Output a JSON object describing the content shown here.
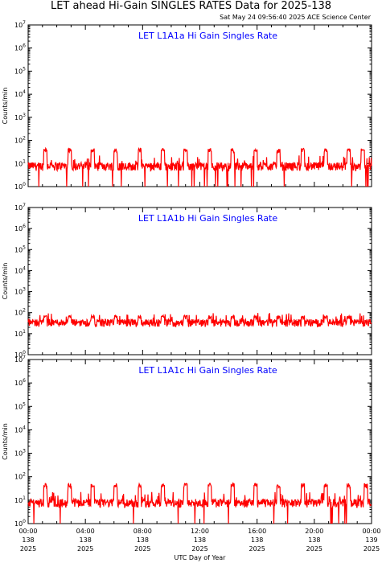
{
  "header": {
    "title": "LET ahead Hi-Gain SINGLES RATES Data for 2025-138",
    "timestamp": "Sat May 24 09:56:40 2025 ACE Science Center"
  },
  "chart_data": [
    {
      "type": "line",
      "title": "LET L1A1a Hi Gain Singles Rate",
      "ylabel": "Counts/min",
      "yscale": "log",
      "ylim": [
        1,
        10000000
      ],
      "xlim": [
        0,
        24
      ],
      "baseline": 8,
      "spike_peak": 40,
      "spike_times_hours": [
        1.2,
        2.9,
        4.5,
        6.1,
        7.8,
        9.4,
        11.0,
        12.7,
        14.3,
        15.9,
        17.5,
        19.2,
        20.8,
        22.4,
        23.4
      ],
      "series": [
        {
          "name": "",
          "color": "#ff0000"
        }
      ]
    },
    {
      "type": "line",
      "title": "LET L1A1b Hi Gain Singles Rate",
      "ylabel": "Counts/min",
      "yscale": "log",
      "ylim": [
        1,
        10000000
      ],
      "xlim": [
        0,
        24
      ],
      "baseline": 35,
      "spike_peak": 65,
      "spike_times_hours": [
        1.2,
        2.9,
        4.5,
        6.1,
        7.8,
        9.4,
        11.0,
        12.7,
        14.3,
        15.9,
        17.5,
        19.2,
        20.8,
        22.4
      ],
      "series": [
        {
          "name": "",
          "color": "#ff0000"
        }
      ]
    },
    {
      "type": "line",
      "title": "LET L1A1c Hi Gain Singles Rate",
      "ylabel": "Counts/min",
      "yscale": "log",
      "ylim": [
        1,
        10000000
      ],
      "xlim": [
        0,
        24
      ],
      "baseline": 8,
      "spike_peak": 45,
      "spike_times_hours": [
        1.2,
        2.9,
        4.5,
        6.1,
        7.8,
        9.4,
        11.0,
        12.7,
        14.3,
        15.9,
        17.5,
        19.2,
        20.8,
        22.4,
        23.6
      ],
      "series": [
        {
          "name": "",
          "color": "#ff0000"
        }
      ]
    }
  ],
  "yaxis": {
    "tick_bases": [
      "10",
      "10",
      "10",
      "10",
      "10",
      "10",
      "10",
      "10"
    ],
    "tick_exponents": [
      "0",
      "1",
      "2",
      "3",
      "4",
      "5",
      "6",
      "7"
    ]
  },
  "xaxis": {
    "title": "UTC Day of Year",
    "ticks": [
      {
        "time": "00:00",
        "doy": "138",
        "year": "2025"
      },
      {
        "time": "04:00",
        "doy": "138",
        "year": "2025"
      },
      {
        "time": "08:00",
        "doy": "138",
        "year": "2025"
      },
      {
        "time": "12:00",
        "doy": "138",
        "year": "2025"
      },
      {
        "time": "16:00",
        "doy": "138",
        "year": "2025"
      },
      {
        "time": "20:00",
        "doy": "138",
        "year": "2025"
      },
      {
        "time": "00:00",
        "doy": "139",
        "year": "2025"
      }
    ]
  },
  "colors": {
    "trace": "#ff0000",
    "panel_title": "#0000ff",
    "axes": "#000000"
  }
}
